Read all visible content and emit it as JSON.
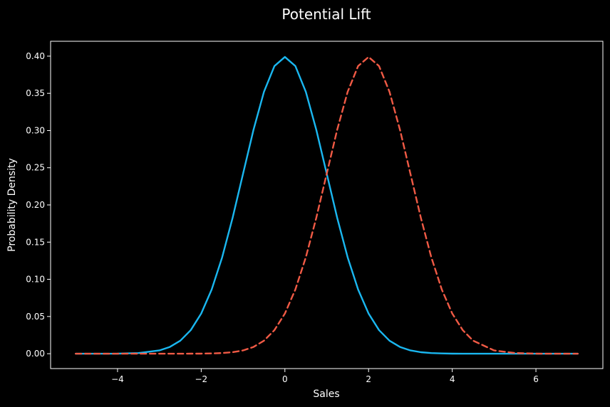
{
  "chart_data": {
    "type": "line",
    "title": "Potential Lift",
    "xlabel": "Sales",
    "ylabel": "Probability Density",
    "xlim": [
      -5.6,
      7.6
    ],
    "ylim": [
      -0.02,
      0.42
    ],
    "xticks": [
      -4,
      -2,
      0,
      2,
      4,
      6
    ],
    "xtick_labels": [
      "−4",
      "−2",
      "0",
      "2",
      "4",
      "6"
    ],
    "yticks": [
      0.0,
      0.05,
      0.1,
      0.15,
      0.2,
      0.25,
      0.3,
      0.35,
      0.4
    ],
    "ytick_labels": [
      "0.00",
      "0.05",
      "0.10",
      "0.15",
      "0.20",
      "0.25",
      "0.30",
      "0.35",
      "0.40"
    ],
    "grid": false,
    "legend": false,
    "x": [
      -5.0,
      -4.5,
      -4.0,
      -3.5,
      -3.0,
      -2.75,
      -2.5,
      -2.25,
      -2.0,
      -1.75,
      -1.5,
      -1.25,
      -1.0,
      -0.75,
      -0.5,
      -0.25,
      0.0,
      0.25,
      0.5,
      0.75,
      1.0,
      1.25,
      1.5,
      1.75,
      2.0,
      2.25,
      2.5,
      2.75,
      3.0,
      3.25,
      3.5,
      3.75,
      4.0,
      4.25,
      4.5,
      5.0,
      5.5,
      6.0,
      6.5,
      7.0
    ],
    "series": [
      {
        "color": "#1ab7f0",
        "dash": "solid",
        "values": [
          0.0,
          0.0,
          0.0001,
          0.0009,
          0.0044,
          0.0091,
          0.0175,
          0.0317,
          0.054,
          0.0863,
          0.1295,
          0.1826,
          0.242,
          0.3011,
          0.3521,
          0.3867,
          0.3989,
          0.3867,
          0.3521,
          0.3011,
          0.242,
          0.1826,
          0.1295,
          0.0863,
          0.054,
          0.0317,
          0.0175,
          0.0091,
          0.0044,
          0.002,
          0.0009,
          0.0004,
          0.0001,
          0.0,
          0.0,
          0.0,
          0.0,
          0.0,
          0.0,
          0.0
        ]
      },
      {
        "color": "#f05a45",
        "dash": "dashed",
        "values": [
          0.0,
          0.0,
          0.0,
          0.0,
          0.0,
          0.0,
          0.0,
          0.0001,
          0.0001,
          0.0004,
          0.0009,
          0.002,
          0.0044,
          0.0091,
          0.0175,
          0.0317,
          0.054,
          0.0863,
          0.1295,
          0.1826,
          0.242,
          0.3011,
          0.3521,
          0.3867,
          0.3989,
          0.3867,
          0.3521,
          0.3011,
          0.242,
          0.1826,
          0.1295,
          0.0863,
          0.054,
          0.0317,
          0.0175,
          0.0044,
          0.0009,
          0.0001,
          0.0,
          0.0
        ]
      }
    ]
  }
}
